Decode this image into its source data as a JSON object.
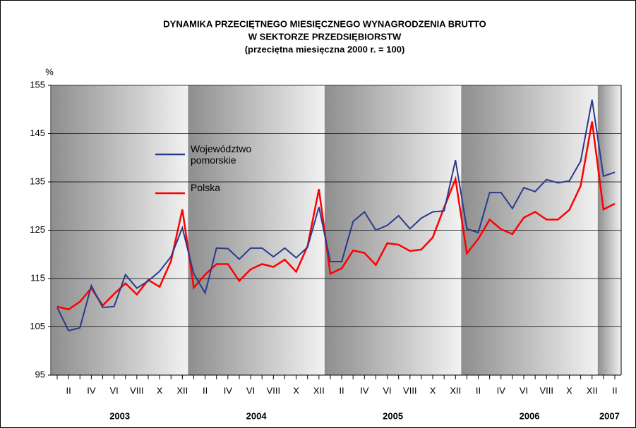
{
  "chart_data": {
    "type": "line",
    "title": "DYNAMIKA PRZECIĘTNEGO MIESIĘCZNEGO WYNAGRODZENIA BRUTTO",
    "subtitle": [
      "W SEKTORZE PRZEDSIĘBIORSTW",
      "(przeciętna miesięczna 2000 r. = 100)"
    ],
    "y_label": "%",
    "categories": [
      null,
      "II",
      null,
      "IV",
      null,
      "VI",
      null,
      "VIII",
      null,
      "X",
      null,
      "XII",
      null,
      "II",
      null,
      "IV",
      null,
      "VI",
      null,
      "VIII",
      null,
      "X",
      null,
      "XII",
      null,
      "II",
      null,
      "IV",
      null,
      "VI",
      null,
      "VIII",
      null,
      "X",
      null,
      "XII",
      null,
      "II",
      null,
      "IV",
      null,
      "VI",
      null,
      "VIII",
      null,
      "X",
      null,
      "XII",
      null,
      "II"
    ],
    "year_labels": [
      "2003",
      "2004",
      "2005",
      "2006",
      "2007"
    ],
    "series": [
      {
        "name": "Województwo pomorskie",
        "color": "#2a3a8c",
        "values": [
          109,
          104.2,
          104.8,
          113.5,
          109,
          109.2,
          115.8,
          113,
          114.5,
          116.5,
          119.5,
          125.5,
          116,
          112,
          121.3,
          121.2,
          119,
          121.3,
          121.3,
          119.5,
          121.3,
          119.3,
          121.5,
          129.8,
          118.5,
          118.5,
          126.8,
          128.8,
          125,
          126,
          128,
          125.3,
          127.5,
          128.8,
          129,
          139.5,
          125.3,
          124.5,
          132.8,
          132.8,
          129.5,
          133.8,
          133,
          135.5,
          134.8,
          135.2,
          139.3,
          152,
          136.2,
          137
        ]
      },
      {
        "name": "Polska",
        "color": "#ff0000",
        "values": [
          109.2,
          108.6,
          110.2,
          113,
          109.4,
          111.8,
          114,
          111.7,
          114.7,
          113.3,
          118.6,
          129.3,
          113.1,
          115.8,
          118,
          118,
          114.5,
          116.9,
          118,
          117.4,
          118.9,
          116.4,
          121.7,
          133.5,
          116,
          117.1,
          120.8,
          120.3,
          117.8,
          122.3,
          122,
          120.7,
          121,
          123.5,
          129.7,
          135.6,
          120.2,
          123.2,
          127.2,
          125.2,
          124.2,
          127.6,
          128.8,
          127.2,
          127.2,
          129.2,
          134.2,
          147.5,
          129.3,
          130.5
        ]
      }
    ],
    "ylim": [
      95,
      155
    ],
    "yticks": [
      95,
      105,
      115,
      125,
      135,
      145,
      155
    ],
    "grid": true
  }
}
